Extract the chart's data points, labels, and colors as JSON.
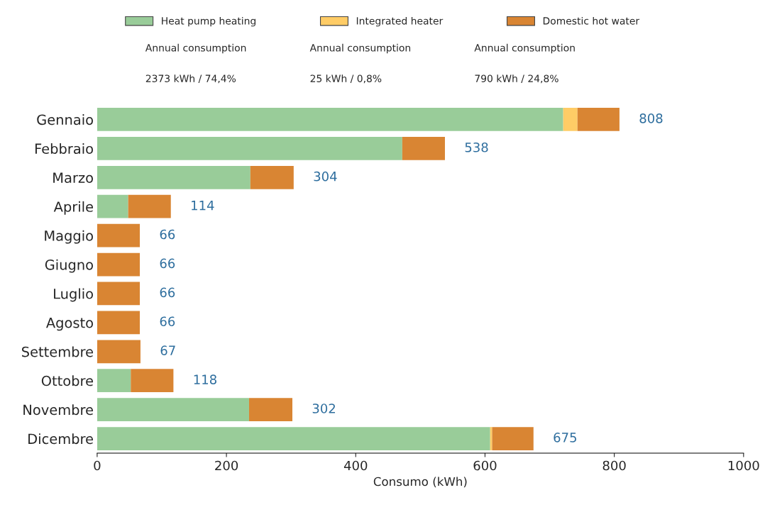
{
  "chart_data": {
    "type": "bar",
    "orientation": "horizontal",
    "stacked": true,
    "categories": [
      "Gennaio",
      "Febbraio",
      "Marzo",
      "Aprile",
      "Maggio",
      "Giugno",
      "Luglio",
      "Agosto",
      "Settembre",
      "Ottobre",
      "Novembre",
      "Dicembre"
    ],
    "series": [
      {
        "name": "Heat pump heating",
        "color": "#99cc99",
        "values": [
          721,
          472,
          237,
          48,
          0,
          0,
          0,
          0,
          0,
          52,
          235,
          608
        ]
      },
      {
        "name": "Integrated heater",
        "color": "#ffcc66",
        "values": [
          22,
          0,
          0,
          0,
          0,
          0,
          0,
          0,
          0,
          0,
          0,
          3
        ]
      },
      {
        "name": "Domestic hot water",
        "color": "#d98533",
        "values": [
          65,
          66,
          67,
          66,
          66,
          66,
          66,
          66,
          67,
          66,
          67,
          64
        ]
      }
    ],
    "totals": [
      "808",
      "538",
      "304",
      "114",
      "66",
      "66",
      "66",
      "66",
      "67",
      "118",
      "302",
      "675"
    ],
    "xlim": [
      0,
      1000
    ],
    "xticks": [
      0,
      200,
      400,
      600,
      800,
      1000
    ],
    "xlabel": "Consumo (kWh)",
    "legend": "top",
    "grid": false,
    "annotations": [
      "Annual consumption",
      "Annual consumption",
      "Annual consumption",
      "2373 kWh / 74,4%",
      "25 kWh / 0,8%",
      "790 kWh / 24,8%"
    ]
  }
}
